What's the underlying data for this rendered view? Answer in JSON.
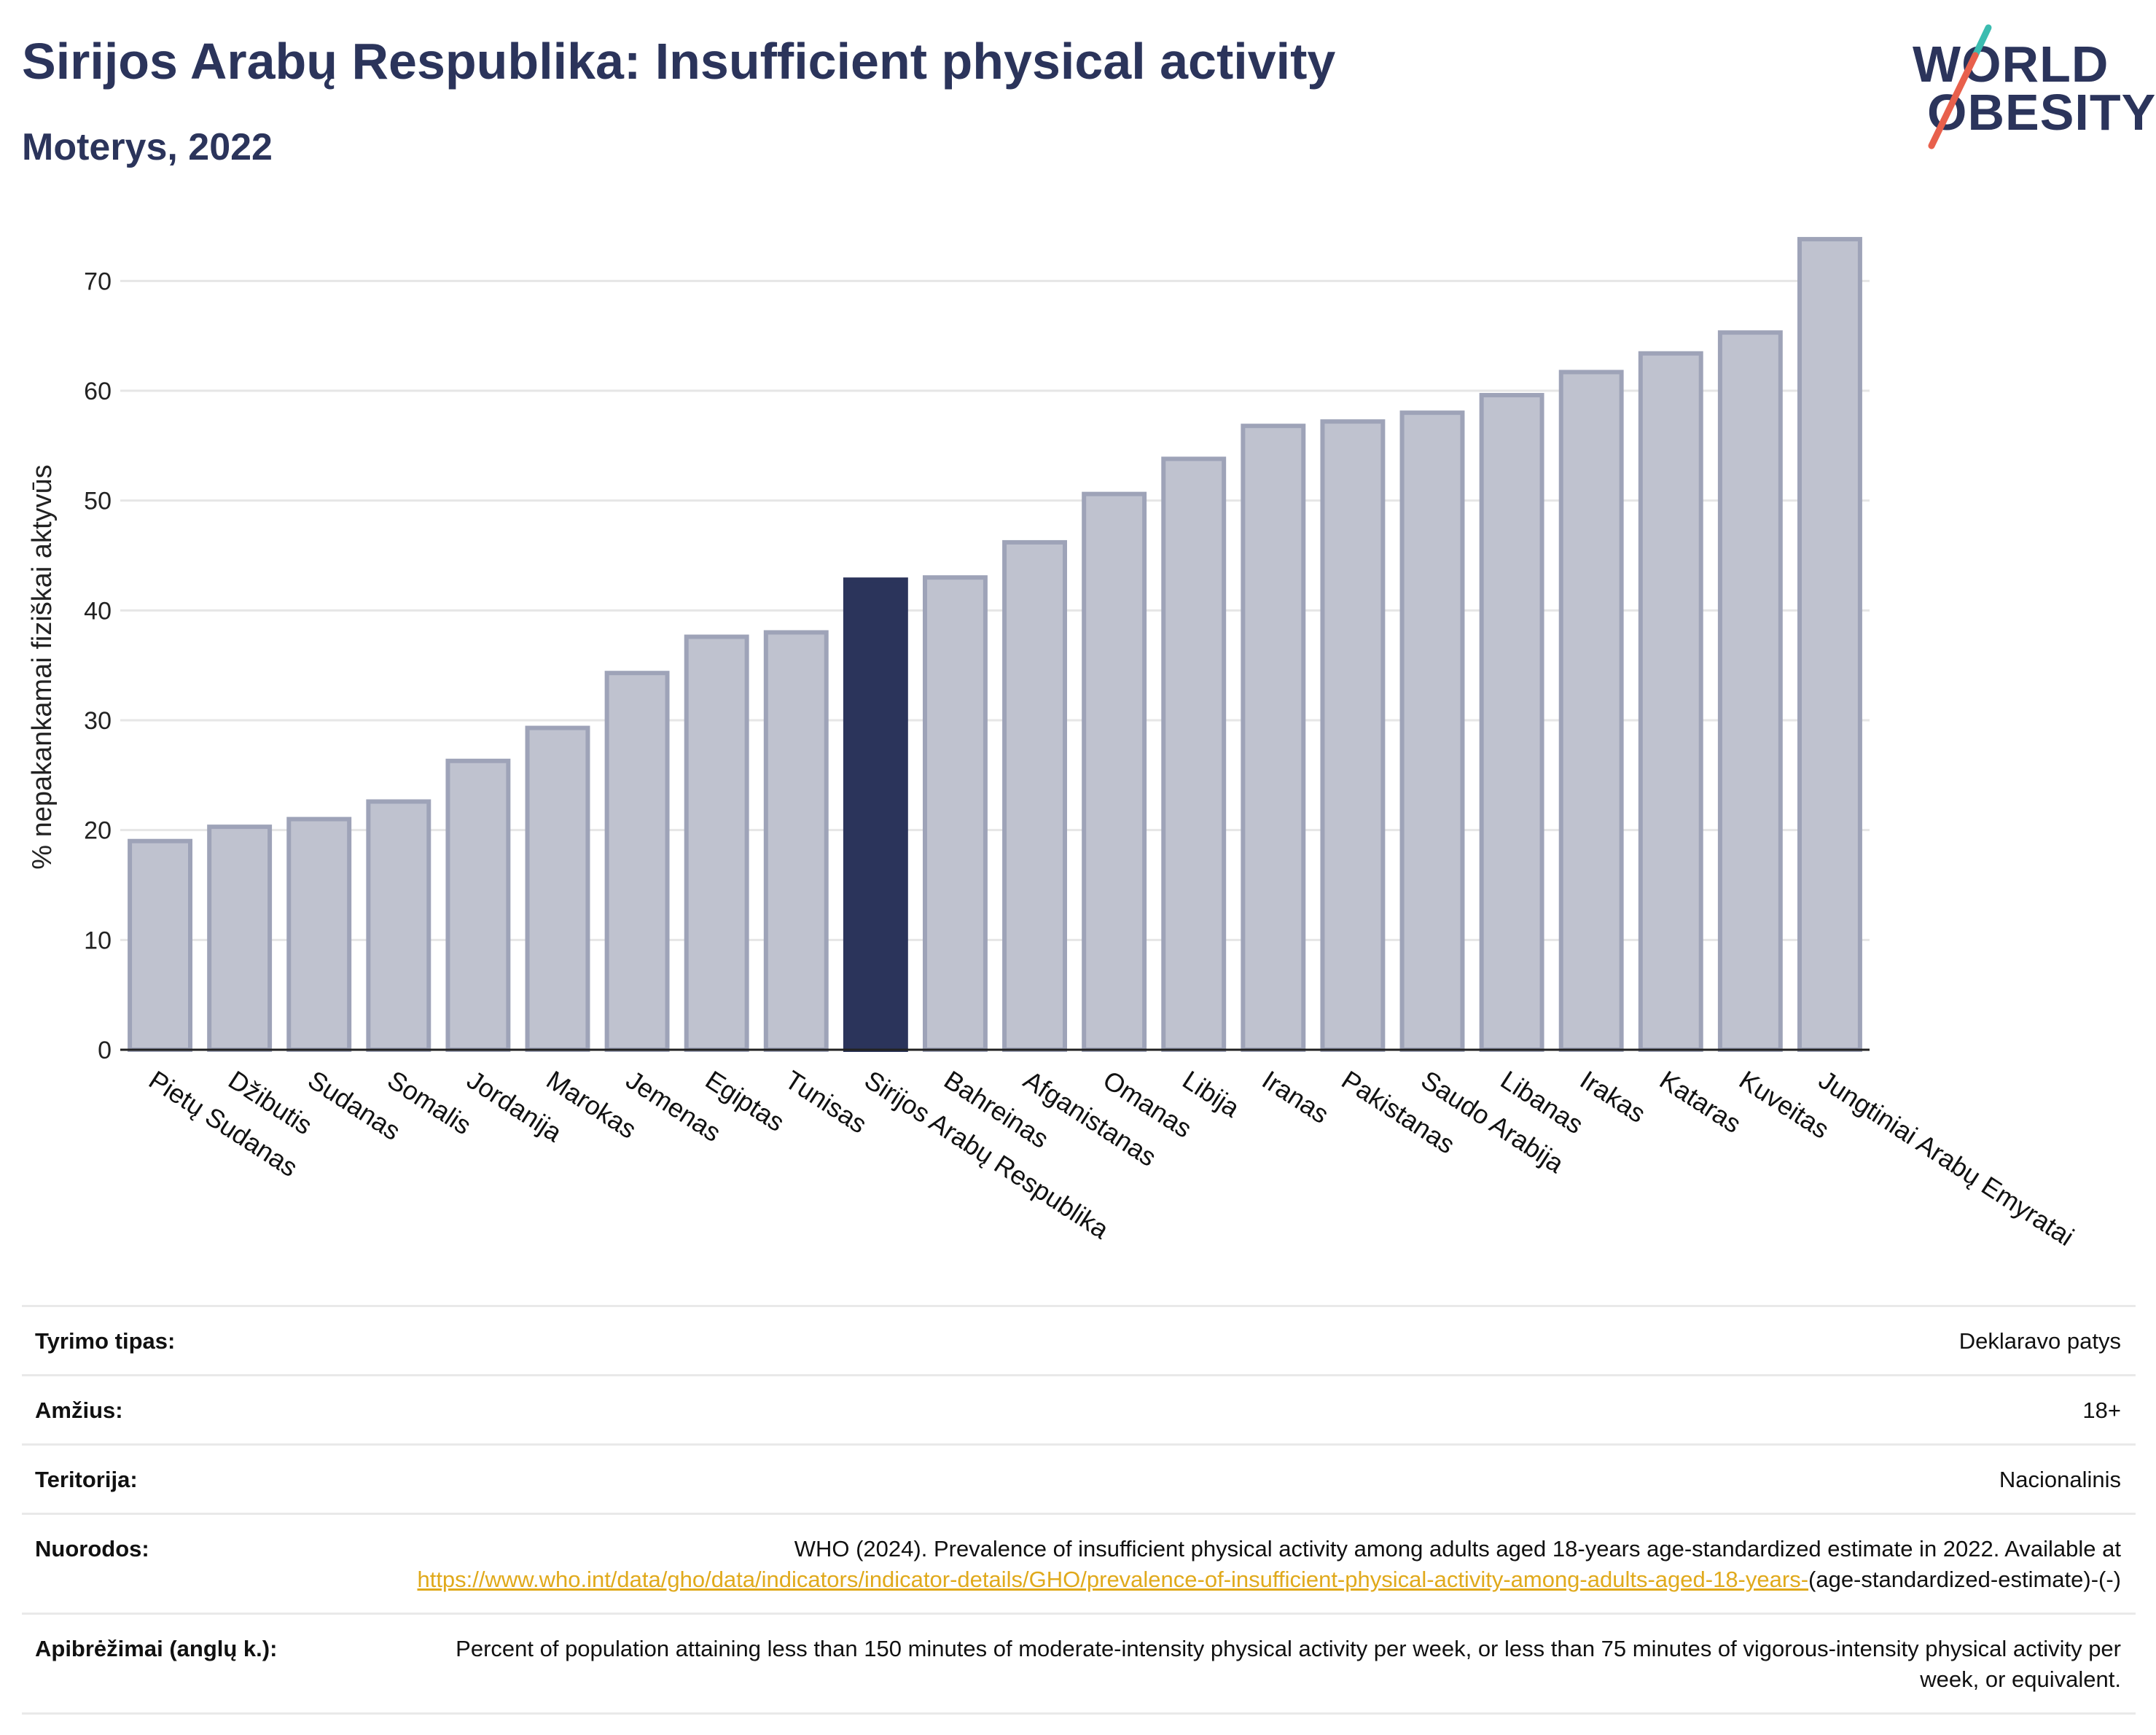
{
  "header": {
    "title": "Sirijos Arabų Respublika: Insufficient physical activity",
    "subtitle": "Moterys, 2022"
  },
  "logo": {
    "line1": "WORLD",
    "line2": "OBESITY",
    "colors": {
      "text": "#2b345b",
      "slash_top": "#3bbcb0",
      "slash_bottom": "#e8604c"
    }
  },
  "colors": {
    "bar_default": "#bfc2cf",
    "bar_default_border": "#9ea3b8",
    "bar_highlight": "#2b345b",
    "grid": "#e6e6e6",
    "link": "#e0a91b"
  },
  "chart_data": {
    "type": "bar",
    "ylabel": "% nepakankamai fiziškai aktyvūs",
    "ylim": [
      0,
      75
    ],
    "yticks": [
      0,
      10,
      20,
      30,
      40,
      50,
      60,
      70
    ],
    "grid": true,
    "highlight": "Sirijos Arabų Respublika",
    "categories": [
      "Pietų Sudanas",
      "Džibutis",
      "Sudanas",
      "Somalis",
      "Jordanija",
      "Marokas",
      "Jemenas",
      "Egiptas",
      "Tunisas",
      "Sirijos Arabų Respublika",
      "Bahreinas",
      "Afganistanas",
      "Omanas",
      "Libija",
      "Iranas",
      "Pakistanas",
      "Saudo Arabija",
      "Libanas",
      "Irakas",
      "Kataras",
      "Kuveitas",
      "Jungtiniai Arabų Emyratai"
    ],
    "values": [
      19.0,
      20.3,
      21.0,
      22.6,
      26.3,
      29.3,
      34.3,
      37.6,
      38.0,
      42.8,
      43.0,
      46.2,
      50.6,
      53.8,
      56.8,
      57.2,
      58.0,
      59.6,
      61.7,
      63.4,
      65.3,
      73.8
    ]
  },
  "meta": [
    {
      "label": "Tyrimo tipas:",
      "value": "Deklaravo patys"
    },
    {
      "label": "Amžius:",
      "value": "18+"
    },
    {
      "label": "Teritorija:",
      "value": "Nacionalinis"
    },
    {
      "label": "Nuorodos:",
      "value": "WHO (2024). Prevalence of insufficient physical activity among adults aged 18-years age-standardized estimate in 2022. Available at",
      "link": "https://www.who.int/data/gho/data/indicators/indicator-details/GHO/prevalence-of-insufficient-physical-activity-among-adults-aged-18-years-",
      "suffix": "(age-standardized-estimate)-(-)"
    },
    {
      "label": "Apibrėžimai (anglų k.):",
      "value": "Percent of population attaining less than 150 minutes of moderate-intensity physical activity per week, or less than 75 minutes of vigorous-intensity physical activity per week, or equivalent."
    }
  ]
}
